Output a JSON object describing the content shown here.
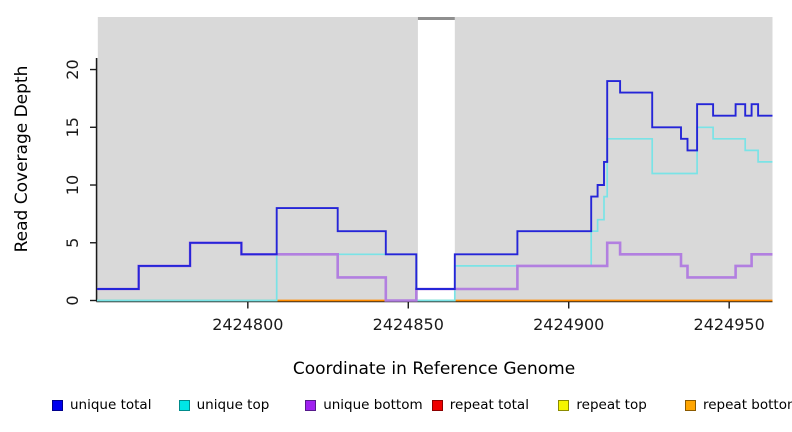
{
  "chart_data": {
    "type": "line",
    "subtype": "step-coverage",
    "title": "",
    "xlabel": "Coordinate in Reference Genome",
    "ylabel": "Read Coverage Depth",
    "x_ticks": [
      "2424800",
      "2424850",
      "2424900",
      "2424950"
    ],
    "x_tick_values": [
      2424800,
      2424850,
      2424900,
      2424950
    ],
    "y_ticks": [
      "0",
      "5",
      "10",
      "15",
      "20"
    ],
    "y_tick_values": [
      0,
      5,
      10,
      15,
      20
    ],
    "xlim": [
      2424753,
      2424963.5
    ],
    "ylim": [
      0,
      24.55
    ],
    "grid": "off",
    "plot_bg": "#d9d9d9",
    "no_coverage_gap": {
      "from": 2424853,
      "to": 2424864.5,
      "fill": "#ffffff",
      "cap_color": "#8f8f8f"
    },
    "zero_line_segments": [
      {
        "from": 2424753,
        "to": 2424809,
        "value": 0,
        "color": "#97d197"
      },
      {
        "from": 2424809,
        "to": 2424843,
        "value": 0,
        "color": "#ff8c00"
      },
      {
        "from": 2424843,
        "to": 2424853,
        "value": 0,
        "color": "#d4608a"
      },
      {
        "from": 2424853,
        "to": 2424864.5,
        "value": 0,
        "color": "#97d197"
      },
      {
        "from": 2424864.5,
        "to": 2424963.5,
        "value": 0,
        "color": "#ff8c00"
      }
    ],
    "series": [
      {
        "name": "unique top",
        "color": "#7ae3e6",
        "width": 1.7,
        "steps": [
          [
            2424753,
            0
          ],
          [
            2424809,
            4
          ],
          [
            2424852.5,
            0
          ],
          [
            2424864.5,
            3
          ],
          [
            2424907,
            6
          ],
          [
            2424909,
            7
          ],
          [
            2424911,
            9
          ],
          [
            2424912,
            14
          ],
          [
            2424926,
            11
          ],
          [
            2424940,
            15
          ],
          [
            2424945,
            14
          ],
          [
            2424955,
            13
          ],
          [
            2424959,
            12
          ]
        ]
      },
      {
        "name": "unique bottom",
        "color": "#b27fe0",
        "width": 2.6,
        "steps": [
          [
            2424753,
            1
          ],
          [
            2424766,
            3
          ],
          [
            2424782,
            5
          ],
          [
            2424798,
            4
          ],
          [
            2424828,
            2
          ],
          [
            2424843,
            0
          ],
          [
            2424852.5,
            1
          ],
          [
            2424884,
            3
          ],
          [
            2424912,
            5
          ],
          [
            2424916,
            4
          ],
          [
            2424935,
            3
          ],
          [
            2424937,
            2
          ],
          [
            2424952,
            3
          ],
          [
            2424957,
            4
          ]
        ]
      },
      {
        "name": "unique total",
        "color": "#2525d8",
        "width": 1.9,
        "steps": [
          [
            2424753,
            1
          ],
          [
            2424766,
            3
          ],
          [
            2424782,
            5
          ],
          [
            2424798,
            4
          ],
          [
            2424809,
            8
          ],
          [
            2424828,
            6
          ],
          [
            2424843,
            4
          ],
          [
            2424852.5,
            1
          ],
          [
            2424864.5,
            4
          ],
          [
            2424884,
            6
          ],
          [
            2424907,
            9
          ],
          [
            2424909,
            10
          ],
          [
            2424911,
            12
          ],
          [
            2424912,
            19
          ],
          [
            2424916,
            18
          ],
          [
            2424926,
            15
          ],
          [
            2424935,
            14
          ],
          [
            2424937,
            13
          ],
          [
            2424940,
            17
          ],
          [
            2424945,
            16
          ],
          [
            2424952,
            17
          ],
          [
            2424955,
            16
          ],
          [
            2424957,
            17
          ],
          [
            2424959,
            16
          ]
        ]
      }
    ],
    "legend": [
      {
        "label": "unique total",
        "fill": "#0000ee",
        "border": "#00008b"
      },
      {
        "label": "unique top",
        "fill": "#00e5e5",
        "border": "#008b8b"
      },
      {
        "label": "unique bottom",
        "fill": "#a020f0",
        "border": "#551a8b"
      },
      {
        "label": "repeat total",
        "fill": "#ee0000",
        "border": "#8b0000"
      },
      {
        "label": "repeat top",
        "fill": "#f5f500",
        "border": "#8b8b00"
      },
      {
        "label": "repeat bottom",
        "fill": "#ffa500",
        "border": "#8b5a00"
      }
    ],
    "legend_position": "bottom"
  }
}
